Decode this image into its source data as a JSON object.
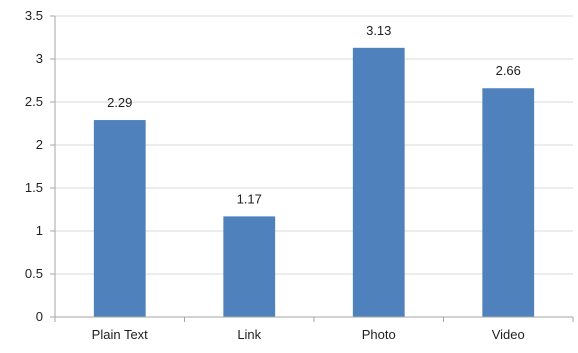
{
  "chart_data": {
    "type": "bar",
    "categories": [
      "Plain Text",
      "Link",
      "Photo",
      "Video"
    ],
    "values": [
      2.29,
      1.17,
      3.13,
      2.66
    ],
    "data_labels": [
      "2.29",
      "1.17",
      "3.13",
      "2.66"
    ],
    "ylim": [
      0,
      3.5
    ],
    "y_ticks": [
      0,
      0.5,
      1,
      1.5,
      2,
      2.5,
      3,
      3.5
    ],
    "y_tick_labels": [
      "0",
      "0.5",
      "1",
      "1.5",
      "2",
      "2.5",
      "3",
      "3.5"
    ],
    "title": "",
    "xlabel": "",
    "ylabel": "",
    "grid": true,
    "legend": false,
    "colors": {
      "bar": "#4f81bd",
      "grid": "#d9d9d9",
      "axis": "#a6a6a6",
      "text": "#1f1f1f"
    }
  }
}
